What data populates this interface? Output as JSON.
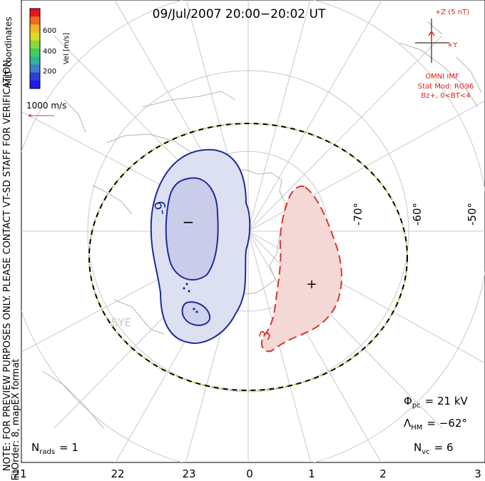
{
  "title": "09/Jul/2007 20:00−20:02 UT",
  "colorbar": {
    "label": "Vel [m/s]",
    "ticks": [
      "600",
      "400",
      "200"
    ],
    "colors": [
      "#e8141b",
      "#f06a1c",
      "#f5b324",
      "#d8de24",
      "#8ad83c",
      "#3fcf5a",
      "#2fb39a",
      "#3f7fc9",
      "#2a3fd6",
      "#1c1cf0"
    ]
  },
  "coord_label": "MLT coordinates",
  "vector_scale": "1000 m/s",
  "watermark": "NOTE: FOR PREVIEW PURPOSES ONLY. PLEASE CONTACT VT-SD STAFF FOR VERIFICATION.",
  "fit_info": "FitOrder: 8, mapEX format",
  "imf": {
    "z_label": "+Z (5 nT)",
    "y_label": "+Y",
    "source": "OMNI IMF",
    "model": "Stat Mod: RG96",
    "condition": "Bz+, 0<BT<4"
  },
  "lat_labels": [
    "-70°",
    "-60°",
    "-50°"
  ],
  "station": "SYE",
  "contour_labels": {
    "neg": "-9",
    "pos": "3"
  },
  "markers": {
    "min": "−",
    "max": "+"
  },
  "stats": {
    "phi_pc": "Φ",
    "phi_pc_sub": "pc",
    "phi_pc_value": "= 21 kV",
    "lambda_hm": "Λ",
    "lambda_hm_sub": "HM",
    "lambda_hm_value": "= −62°",
    "n_vc": "N",
    "n_vc_sub": "vc",
    "n_vc_value": "= 6",
    "n_rads": "N",
    "n_rads_sub": "rads",
    "n_rads_value": "= 1"
  },
  "mlt_labels": [
    "21",
    "22",
    "23",
    "0",
    "1",
    "2",
    "3"
  ],
  "colors": {
    "negative_contour": "#1d2b9c",
    "negative_fill": "#c9cde8",
    "positive_contour": "#d9362f",
    "positive_fill": "#f3d2d0",
    "hmb": "#9ad84a",
    "imf": "#e0201c",
    "grid": "#c8c8c8",
    "coast": "#b4b4b4"
  }
}
